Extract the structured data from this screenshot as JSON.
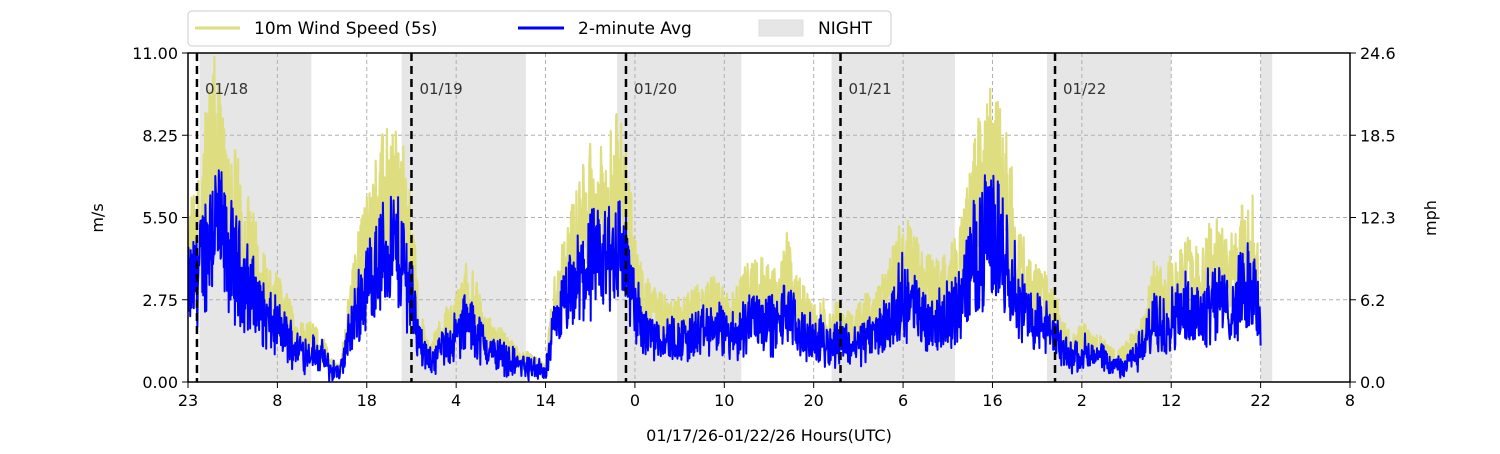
{
  "chart_data": {
    "type": "line",
    "xlabel": "01/17/26-01/22/26  Hours(UTC)",
    "ylabel_left": "m/s",
    "ylabel_right": "mph",
    "ylim": [
      0,
      11
    ],
    "ylim_right": [
      0,
      24.6
    ],
    "xlim_hours": [
      0,
      130
    ],
    "start_hour_utc": 23,
    "grid": true,
    "legend_position": "top-center-outside",
    "yticks_left": [
      "0.00",
      "2.75",
      "5.50",
      "8.25",
      "11.00"
    ],
    "yticks_right": [
      "0.0",
      "6.2",
      "12.3",
      "18.5",
      "24.6"
    ],
    "xticks": [
      "23",
      "8",
      "18",
      "4",
      "14",
      "0",
      "10",
      "20",
      "6",
      "16",
      "2",
      "12",
      "22",
      "8"
    ],
    "legend": [
      "10m Wind Speed (5s)",
      "2-minute Avg",
      "NIGHT"
    ],
    "colors": {
      "gust": "#dede80",
      "avg": "#0000ff",
      "night": "#e6e6e6"
    },
    "night_periods_hours": [
      [
        1.3,
        13.8
      ],
      [
        23.9,
        37.8
      ],
      [
        48,
        61.9
      ],
      [
        72,
        85.8
      ],
      [
        96.1,
        110
      ],
      [
        120,
        121.3
      ]
    ],
    "midnights": [
      {
        "hour": 1,
        "label": "01/18"
      },
      {
        "hour": 25,
        "label": "01/19"
      },
      {
        "hour": 49,
        "label": "01/20"
      },
      {
        "hour": 73,
        "label": "01/21"
      },
      {
        "hour": 97,
        "label": "01/22"
      }
    ],
    "series": [
      {
        "name": "2-minute Avg (hourly approx, m/s)",
        "values": [
          3,
          3.5,
          4.5,
          5.5,
          4.5,
          4,
          3.5,
          3,
          2.5,
          2,
          1.8,
          1.5,
          1.2,
          1,
          1,
          0.8,
          0.4,
          0.3,
          1.5,
          2.5,
          3.2,
          3.8,
          4.2,
          4.5,
          4,
          3,
          1.2,
          0.6,
          1,
          1.3,
          1.5,
          2,
          1.8,
          1.3,
          1,
          0.9,
          0.7,
          0.6,
          0.5,
          0.4,
          0.3,
          1.8,
          2.5,
          3,
          3.5,
          4,
          3.8,
          4.2,
          4.5,
          4,
          2.5,
          1.8,
          1.6,
          1.5,
          1.4,
          1.4,
          1.5,
          1.6,
          1.7,
          1.8,
          1.6,
          1.5,
          1.8,
          2.2,
          2.2,
          2,
          1.8,
          2.5,
          1.8,
          1.6,
          1.3,
          1.4,
          1.2,
          1.5,
          1.2,
          1.3,
          1.5,
          1.6,
          1.9,
          2.3,
          2.9,
          2.6,
          2.2,
          2.1,
          2,
          2.3,
          2.4,
          3.2,
          4.2,
          4.6,
          5,
          4.5,
          3.8,
          2.6,
          2.2,
          2,
          1.8,
          1.5,
          1,
          0.8,
          1,
          0.9,
          0.8,
          0.6,
          0.5,
          0.7,
          0.9,
          1.2,
          2,
          2,
          2.1,
          2.3,
          2.5,
          2.3,
          2.6,
          2.9,
          2.4,
          2.5,
          3,
          3.2,
          2.2
        ]
      },
      {
        "name": "10m Wind Speed (5s) gust factor vs avg",
        "factor": 1.5
      }
    ]
  }
}
